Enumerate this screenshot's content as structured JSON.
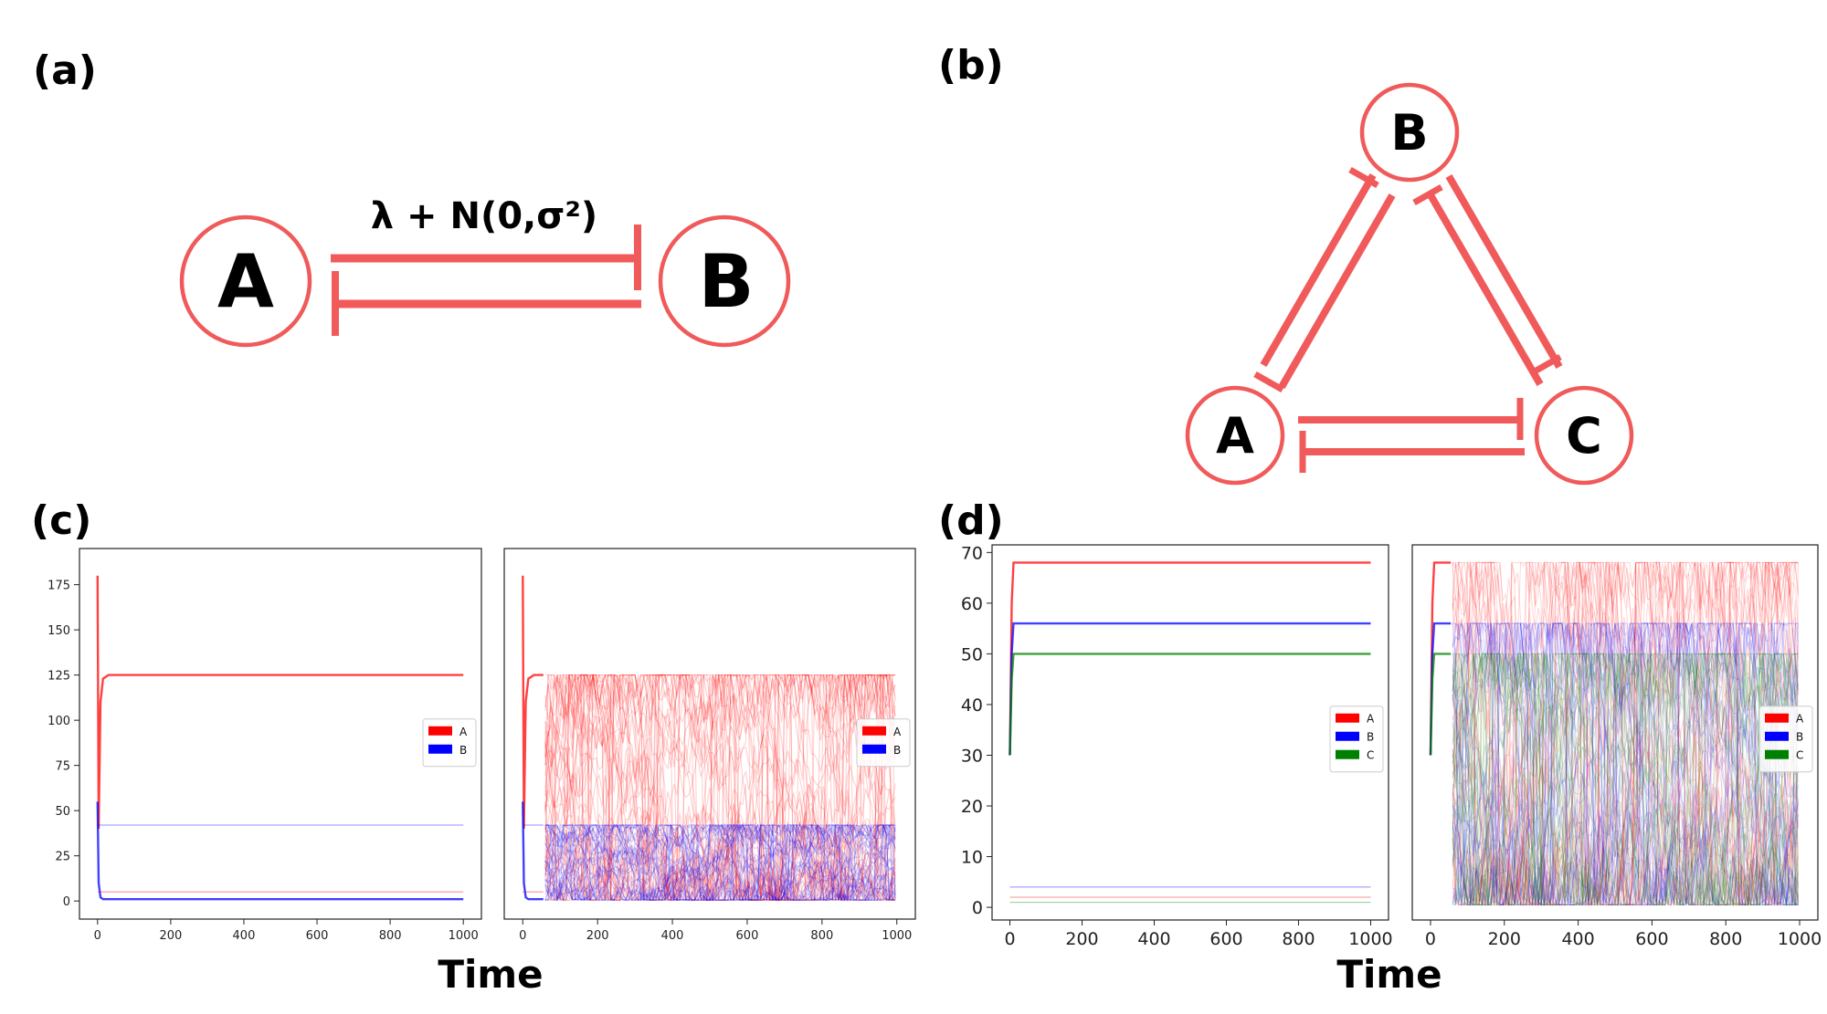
{
  "panels": {
    "a": "(a)",
    "b": "(b)",
    "c": "(c)",
    "d": "(d)"
  },
  "diagram_a": {
    "node_a": "A",
    "node_b": "B",
    "edge_label": "λ + N(0,σ²)"
  },
  "diagram_b": {
    "node_a": "A",
    "node_b": "B",
    "node_c": "C"
  },
  "colors": {
    "inhibition": "#f05a5a",
    "series_a": "#ff0000",
    "series_b": "#0000ff",
    "series_c": "#008000"
  },
  "chart_data": [
    {
      "id": "c-left",
      "type": "line",
      "title": "",
      "xlabel": "",
      "ylabel": "",
      "xlim": [
        0,
        1000
      ],
      "ylim": [
        -10,
        195
      ],
      "xticks": [
        0,
        200,
        400,
        600,
        800,
        1000
      ],
      "yticks": [
        0,
        25,
        50,
        75,
        100,
        125,
        150,
        175
      ],
      "legend": "center-right",
      "noise": false,
      "series": [
        {
          "name": "A",
          "color": "#ff0000",
          "values": [
            [
              0,
              180
            ],
            [
              3,
              40
            ],
            [
              8,
              110
            ],
            [
              15,
              123
            ],
            [
              30,
              125
            ],
            [
              1000,
              125
            ]
          ]
        },
        {
          "name": "B",
          "color": "#0000ff",
          "values": [
            [
              0,
              55
            ],
            [
              3,
              10
            ],
            [
              8,
              2
            ],
            [
              15,
              1
            ],
            [
              1000,
              1
            ]
          ]
        },
        {
          "name": "",
          "color": "#ff0000",
          "faint": true,
          "values": [
            [
              0,
              5
            ],
            [
              1000,
              5
            ]
          ]
        },
        {
          "name": "",
          "color": "#0000ff",
          "faint": true,
          "values": [
            [
              0,
              42
            ],
            [
              1000,
              42
            ]
          ]
        }
      ]
    },
    {
      "id": "c-right",
      "type": "line",
      "title": "",
      "xlabel": "",
      "ylabel": "",
      "xlim": [
        0,
        1000
      ],
      "ylim": [
        -10,
        195
      ],
      "xticks": [
        0,
        200,
        400,
        600,
        800,
        1000
      ],
      "yticks": [],
      "legend": "center-right",
      "noise": true,
      "noise_start": 60,
      "noise_ranges": {
        "A": [
          0,
          125
        ],
        "B": [
          0,
          42
        ]
      },
      "series": [
        {
          "name": "A",
          "color": "#ff0000",
          "values": [
            [
              0,
              180
            ],
            [
              3,
              40
            ],
            [
              8,
              110
            ],
            [
              15,
              123
            ],
            [
              30,
              125
            ],
            [
              55,
              125
            ]
          ]
        },
        {
          "name": "B",
          "color": "#0000ff",
          "values": [
            [
              0,
              55
            ],
            [
              3,
              10
            ],
            [
              8,
              2
            ],
            [
              15,
              1
            ],
            [
              55,
              1
            ]
          ]
        },
        {
          "name": "",
          "color": "#ff0000",
          "faint": true,
          "values": [
            [
              0,
              5
            ],
            [
              55,
              5
            ]
          ]
        },
        {
          "name": "",
          "color": "#0000ff",
          "faint": true,
          "values": [
            [
              0,
              42
            ],
            [
              55,
              42
            ]
          ]
        }
      ]
    },
    {
      "id": "d-left",
      "type": "line",
      "title": "",
      "xlabel": "",
      "ylabel": "",
      "xlim": [
        0,
        1000
      ],
      "ylim": [
        -2.5,
        71.5
      ],
      "xticks": [
        0,
        200,
        400,
        600,
        800,
        1000
      ],
      "yticks": [
        0,
        10,
        20,
        30,
        40,
        50,
        60,
        70
      ],
      "legend": "center-right",
      "noise": false,
      "series": [
        {
          "name": "A",
          "color": "#ff0000",
          "values": [
            [
              0,
              30
            ],
            [
              5,
              60
            ],
            [
              10,
              68
            ],
            [
              1000,
              68
            ]
          ]
        },
        {
          "name": "B",
          "color": "#0000ff",
          "values": [
            [
              0,
              30
            ],
            [
              5,
              50
            ],
            [
              10,
              56
            ],
            [
              1000,
              56
            ]
          ]
        },
        {
          "name": "C",
          "color": "#008000",
          "values": [
            [
              0,
              30
            ],
            [
              5,
              45
            ],
            [
              10,
              50
            ],
            [
              1000,
              50
            ]
          ]
        },
        {
          "name": "",
          "color": "#ff0000",
          "faint": true,
          "values": [
            [
              0,
              2
            ],
            [
              1000,
              2
            ]
          ]
        },
        {
          "name": "",
          "color": "#0000ff",
          "faint": true,
          "values": [
            [
              0,
              4
            ],
            [
              1000,
              4
            ]
          ]
        },
        {
          "name": "",
          "color": "#008000",
          "faint": true,
          "values": [
            [
              0,
              1
            ],
            [
              1000,
              1
            ]
          ]
        }
      ]
    },
    {
      "id": "d-right",
      "type": "line",
      "title": "",
      "xlabel": "",
      "ylabel": "",
      "xlim": [
        0,
        1000
      ],
      "ylim": [
        -2.5,
        71.5
      ],
      "xticks": [
        0,
        200,
        400,
        600,
        800,
        1000
      ],
      "yticks": [],
      "legend": "center-right",
      "noise": true,
      "noise_start": 60,
      "noise_ranges": {
        "A": [
          0,
          68
        ],
        "B": [
          0,
          56
        ],
        "C": [
          0,
          50
        ]
      },
      "series": [
        {
          "name": "A",
          "color": "#ff0000",
          "values": [
            [
              0,
              30
            ],
            [
              5,
              60
            ],
            [
              10,
              68
            ],
            [
              55,
              68
            ]
          ]
        },
        {
          "name": "B",
          "color": "#0000ff",
          "values": [
            [
              0,
              30
            ],
            [
              5,
              50
            ],
            [
              10,
              56
            ],
            [
              55,
              56
            ]
          ]
        },
        {
          "name": "C",
          "color": "#008000",
          "values": [
            [
              0,
              30
            ],
            [
              5,
              45
            ],
            [
              10,
              50
            ],
            [
              55,
              50
            ]
          ]
        }
      ]
    }
  ],
  "xlabel_c": "Time",
  "xlabel_d": "Time"
}
